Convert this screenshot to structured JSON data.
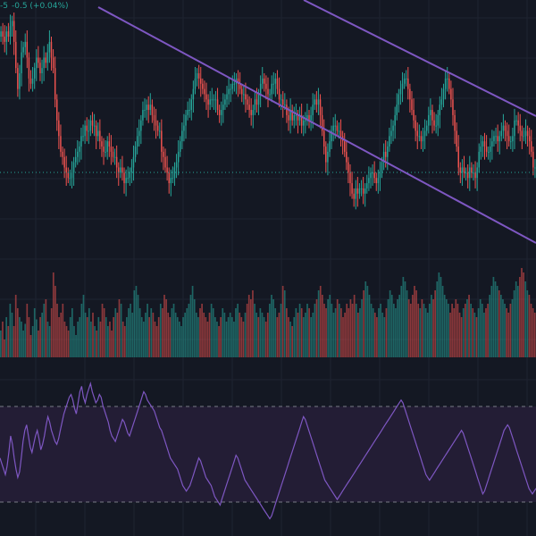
{
  "header": {
    "change_prefix": "-5",
    "change_text": "-0.5 (+0.04%)"
  },
  "colors": {
    "background": "#141823",
    "grid": "#1e2330",
    "up": "#26a69a",
    "down": "#ef5350",
    "channel": "#7e57c2",
    "rsi_line": "#7e57c2",
    "rsi_band": "#231d35",
    "rsi_dash": "#787b86",
    "last_price_line": "#26a69a"
  },
  "icons": [
    "price-channel-icon"
  ],
  "chart_data": {
    "type": "candlestick",
    "title": "",
    "grid": true,
    "price_range": [
      27.5,
      77
    ],
    "price_candles_close": [
      71,
      70,
      69,
      71,
      70,
      72,
      73,
      69,
      64,
      60,
      63,
      67,
      68,
      69,
      66,
      62,
      61,
      62,
      64,
      66,
      65,
      63,
      64,
      66,
      65,
      67,
      69,
      66,
      64,
      58,
      54,
      51,
      48,
      47,
      45,
      44,
      43,
      43,
      44,
      46,
      47,
      48,
      49,
      51,
      51,
      53,
      52,
      52,
      54,
      53,
      53,
      51,
      52,
      50,
      49,
      48,
      48,
      50,
      49,
      48,
      47,
      47,
      45,
      44,
      45,
      44,
      42,
      43,
      43,
      44,
      45,
      47,
      49,
      51,
      52,
      54,
      56,
      56,
      57,
      56,
      57,
      55,
      54,
      53,
      52,
      52,
      48,
      47,
      45,
      44,
      42,
      43,
      43,
      45,
      46,
      48,
      50,
      52,
      53,
      55,
      56,
      56,
      58,
      60,
      62,
      63,
      62,
      61,
      60,
      59,
      58,
      57,
      58,
      58,
      58,
      58,
      56,
      55,
      56,
      57,
      58,
      59,
      60,
      60,
      61,
      61,
      62,
      61,
      60,
      59,
      59,
      58,
      57,
      56,
      55,
      56,
      58,
      57,
      59,
      61,
      62,
      61,
      60,
      59,
      59,
      61,
      61,
      62,
      60,
      58,
      58,
      57,
      57,
      55,
      54,
      56,
      54,
      55,
      55,
      54,
      55,
      53,
      54,
      54,
      55,
      54,
      55,
      57,
      58,
      57,
      58,
      55,
      52,
      49,
      46,
      48,
      50,
      52,
      53,
      53,
      52,
      52,
      51,
      50,
      48,
      46,
      44,
      42,
      40,
      39,
      41,
      40,
      41,
      41,
      40,
      41,
      42,
      43,
      44,
      44,
      43,
      42,
      43,
      44,
      46,
      48,
      47,
      49,
      51,
      52,
      53,
      55,
      57,
      59,
      60,
      61,
      62,
      62,
      60,
      58,
      56,
      54,
      52,
      51,
      51,
      50,
      51,
      52,
      53,
      55,
      56,
      54,
      53,
      53,
      55,
      57,
      58,
      60,
      62,
      62,
      60,
      58,
      55,
      52,
      49,
      45,
      44,
      45,
      44,
      44,
      43,
      45,
      44,
      44,
      43,
      45,
      48,
      49,
      50,
      49,
      48,
      48,
      49,
      50,
      51,
      51,
      50,
      51,
      52,
      53,
      52,
      51,
      50,
      50,
      51,
      54,
      54,
      53,
      52,
      51,
      51,
      52,
      51,
      50,
      48,
      45,
      45
    ],
    "volume_range": [
      0,
      20000
    ],
    "volume": [
      6000,
      8000,
      4000,
      9000,
      7000,
      12000,
      10000,
      7000,
      14000,
      11000,
      9000,
      8000,
      6000,
      7500,
      12000,
      9000,
      5000,
      7000,
      11000,
      8500,
      6000,
      9000,
      10000,
      12000,
      13000,
      8000,
      7000,
      11000,
      19000,
      16000,
      12000,
      9000,
      10000,
      12000,
      8000,
      7000,
      6000,
      9000,
      11000,
      7000,
      5000,
      8000,
      9000,
      12000,
      14000,
      10000,
      9000,
      11000,
      8000,
      10000,
      7000,
      6000,
      9000,
      8000,
      12000,
      11000,
      9000,
      7000,
      8000,
      6000,
      9000,
      11000,
      10000,
      13000,
      12000,
      8000,
      7000,
      9000,
      11000,
      12000,
      10000,
      15000,
      16000,
      14000,
      11000,
      9000,
      8000,
      10000,
      12000,
      9000,
      11000,
      10000,
      8000,
      7000,
      9000,
      12000,
      11000,
      14000,
      13000,
      10000,
      9000,
      11000,
      12000,
      10000,
      9000,
      8000,
      7000,
      9000,
      10000,
      11000,
      12000,
      14000,
      16000,
      13000,
      10000,
      9000,
      11000,
      12000,
      10000,
      9000,
      8000,
      10000,
      12000,
      11000,
      9000,
      8000,
      7000,
      9000,
      11000,
      10000,
      8000,
      9000,
      10000,
      9000,
      8000,
      11000,
      12000,
      10000,
      9000,
      8000,
      10000,
      12000,
      14000,
      13000,
      15000,
      12000,
      10000,
      9000,
      11000,
      10000,
      9000,
      8000,
      10000,
      12000,
      14000,
      13000,
      11000,
      9000,
      10000,
      12000,
      16000,
      15000,
      11000,
      9000,
      8000,
      7000,
      9000,
      11000,
      10000,
      12000,
      11000,
      9000,
      10000,
      12000,
      11000,
      9000,
      10000,
      12000,
      13000,
      15000,
      16000,
      14000,
      12000,
      11000,
      13000,
      14000,
      12000,
      10000,
      11000,
      13000,
      12000,
      11000,
      9000,
      10000,
      12000,
      11000,
      13000,
      12000,
      14000,
      12000,
      10000,
      11000,
      13000,
      15000,
      17000,
      16000,
      14000,
      12000,
      11000,
      10000,
      9000,
      11000,
      12000,
      10000,
      9000,
      11000,
      13000,
      15000,
      14000,
      12000,
      11000,
      13000,
      14000,
      16000,
      18000,
      17000,
      15000,
      13000,
      12000,
      14000,
      16000,
      15000,
      12000,
      11000,
      13000,
      12000,
      11000,
      10000,
      12000,
      14000,
      13000,
      15000,
      17000,
      19000,
      18000,
      16000,
      14000,
      13000,
      12000,
      10000,
      12000,
      11000,
      13000,
      12000,
      10000,
      9000,
      11000,
      12000,
      13000,
      14000,
      12000,
      11000,
      10000,
      9000,
      11000,
      13000,
      12000,
      10000,
      11000,
      12000,
      14000,
      16000,
      18000,
      17000,
      16000,
      15000,
      14000,
      13000,
      12000,
      11000,
      10000,
      12000,
      13000,
      15000,
      17000,
      16000,
      18000,
      20000,
      19000,
      17000,
      15000,
      14000,
      12000,
      11000,
      10000
    ],
    "rsi_range": [
      25,
      80
    ],
    "rsi_bands": [
      70,
      30
    ],
    "rsi": [
      50,
      48,
      46,
      44,
      47,
      52,
      58,
      55,
      50,
      46,
      43,
      45,
      50,
      56,
      60,
      62,
      58,
      54,
      52,
      55,
      58,
      60,
      57,
      53,
      55,
      58,
      62,
      65,
      63,
      60,
      58,
      56,
      55,
      57,
      60,
      63,
      66,
      68,
      70,
      72,
      73,
      71,
      68,
      66,
      70,
      74,
      76,
      72,
      70,
      73,
      75,
      77,
      74,
      72,
      70,
      71,
      73,
      72,
      69,
      67,
      65,
      63,
      60,
      58,
      57,
      56,
      58,
      60,
      62,
      64,
      63,
      61,
      59,
      58,
      60,
      62,
      64,
      66,
      68,
      70,
      72,
      74,
      73,
      71,
      70,
      69,
      68,
      67,
      65,
      63,
      61,
      60,
      58,
      56,
      54,
      52,
      50,
      49,
      48,
      47,
      46,
      44,
      42,
      40,
      39,
      38,
      39,
      40,
      42,
      44,
      46,
      48,
      50,
      49,
      47,
      45,
      43,
      42,
      41,
      40,
      38,
      36,
      35,
      34,
      33,
      35,
      37,
      39,
      41,
      43,
      45,
      47,
      49,
      51,
      50,
      48,
      46,
      44,
      42,
      41,
      40,
      39,
      38,
      37,
      36,
      35,
      34,
      33,
      32,
      31,
      30,
      29,
      28,
      29,
      31,
      33,
      35,
      37,
      39,
      41,
      43,
      45,
      47,
      49,
      51,
      53,
      55,
      57,
      59,
      61,
      63,
      65,
      64,
      62,
      60,
      58,
      56,
      54,
      52,
      50,
      48,
      46,
      44,
      42,
      41,
      40,
      39,
      38,
      37,
      36,
      35,
      36,
      37,
      38,
      39,
      40,
      41,
      42,
      43,
      44,
      45,
      46,
      47,
      48,
      49,
      50,
      51,
      52,
      53,
      54,
      55,
      56,
      57,
      58,
      59,
      60,
      61,
      62,
      63,
      64,
      65,
      66,
      67,
      68,
      69,
      70,
      71,
      70,
      68,
      66,
      64,
      62,
      60,
      58,
      56,
      54,
      52,
      50,
      48,
      46,
      44,
      43,
      42,
      43,
      44,
      45,
      46,
      47,
      48,
      49,
      50,
      51,
      52,
      53,
      54,
      55,
      56,
      57,
      58,
      59,
      60,
      59,
      57,
      55,
      53,
      51,
      49,
      47,
      45,
      43,
      41,
      39,
      37,
      38,
      40,
      42,
      44,
      46,
      48,
      50,
      52,
      54,
      56,
      58,
      60,
      61,
      62,
      61,
      59,
      57,
      55,
      53,
      51,
      49,
      47,
      45,
      43,
      41,
      39,
      38,
      37,
      38,
      39
    ]
  }
}
